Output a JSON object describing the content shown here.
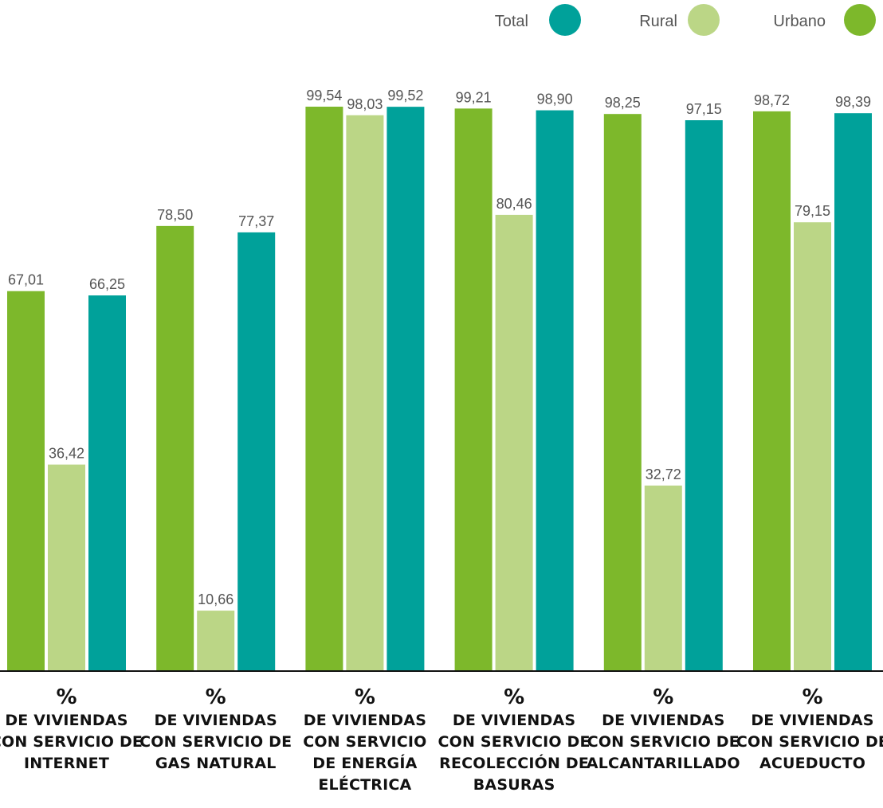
{
  "chart_data": {
    "type": "bar",
    "categories": [
      [
        "%",
        "DE VIVIENDAS",
        "CON SERVICIO DE",
        "INTERNET"
      ],
      [
        "%",
        "DE VIVIENDAS",
        "CON SERVICIO DE",
        "GAS NATURAL"
      ],
      [
        "%",
        "DE VIVIENDAS",
        "CON SERVICIO",
        "DE ENERGÍA",
        "ELÉCTRICA"
      ],
      [
        "%",
        "DE VIVIENDAS",
        "CON SERVICIO DE",
        "RECOLECCIÓN DE",
        "BASURAS"
      ],
      [
        "%",
        "DE VIVIENDAS",
        "CON SERVICIO DE",
        "ALCANTARILLADO"
      ],
      [
        "%",
        "DE VIVIENDAS",
        "CON SERVICIO DE",
        "ACUEDUCTO"
      ]
    ],
    "series": [
      {
        "name": "Urbano",
        "color": "#7DB82B",
        "values": [
          67.01,
          78.5,
          99.54,
          99.21,
          98.25,
          98.72
        ],
        "labels": [
          "67,01",
          "78,50",
          "99,54",
          "99,21",
          "98,25",
          "98,72"
        ]
      },
      {
        "name": "Rural",
        "color": "#BBD686",
        "values": [
          36.42,
          10.66,
          98.03,
          80.46,
          32.72,
          79.15
        ],
        "labels": [
          "36,42",
          "10,66",
          "98,03",
          "80,46",
          "32,72",
          "79,15"
        ]
      },
      {
        "name": "Total",
        "color": "#00A19A",
        "values": [
          66.25,
          77.37,
          99.52,
          98.9,
          97.15,
          98.39
        ],
        "labels": [
          "66,25",
          "77,37",
          "99,52",
          "98,90",
          "97,15",
          "98,39"
        ]
      }
    ],
    "legend": {
      "position": "top-right",
      "order": [
        "Total",
        "Rural",
        "Urbano"
      ]
    },
    "ylim": [
      0,
      100
    ],
    "grid": false
  }
}
